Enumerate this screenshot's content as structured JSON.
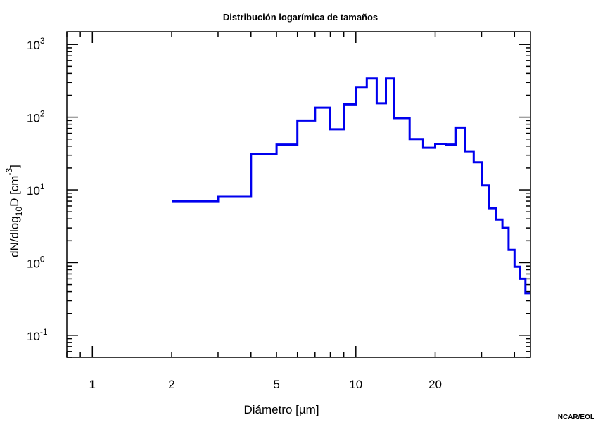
{
  "chart_data": {
    "type": "line",
    "title": "Distribución logarímica de tamaños",
    "xlabel": "Diámetro [µm]",
    "ylabel": "dN/dlog10D [cm-3]",
    "xscale": "log",
    "yscale": "log",
    "xlim": [
      0.8,
      46
    ],
    "ylim": [
      0.05,
      1500
    ],
    "x_ticks": [
      1,
      2,
      5,
      10,
      20
    ],
    "x_tick_labels": [
      "1",
      "2",
      "5",
      "10",
      "20"
    ],
    "y_ticks": [
      0.1,
      1,
      10,
      100,
      1000
    ],
    "y_tick_labels": [
      {
        "base": "10",
        "exp": "-1"
      },
      {
        "base": "10",
        "exp": "0"
      },
      {
        "base": "10",
        "exp": "1"
      },
      {
        "base": "10",
        "exp": "2"
      },
      {
        "base": "10",
        "exp": "3"
      }
    ],
    "grid": false,
    "line_color": "#0000ee",
    "series": [
      {
        "style": "step",
        "bin_edges": [
          2,
          3,
          4,
          5,
          6,
          7,
          8,
          9,
          10,
          11,
          12,
          13,
          14,
          16,
          18,
          20,
          22,
          24,
          26,
          28,
          30,
          32,
          34,
          36,
          38,
          40,
          42,
          44,
          46
        ],
        "values": [
          7,
          8.2,
          31,
          42,
          90,
          135,
          68,
          150,
          260,
          340,
          155,
          340,
          97,
          50,
          38,
          43,
          42,
          72,
          34,
          24,
          11.5,
          5.6,
          3.9,
          3.0,
          1.5,
          0.88,
          0.6,
          0.38
        ]
      }
    ]
  },
  "credit": "NCAR/EOL"
}
